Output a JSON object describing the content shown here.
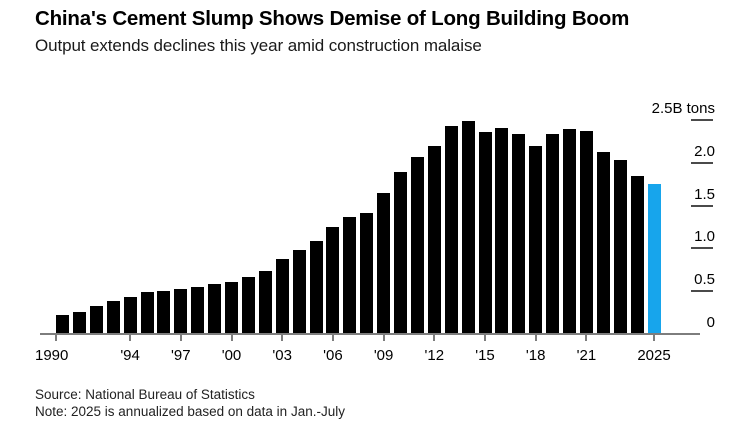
{
  "header": {
    "title": "China's Cement Slump Shows Demise of Long Building Boom",
    "subtitle": "Output extends declines this year amid construction malaise"
  },
  "chart_data": {
    "type": "bar",
    "title": "China's Cement Slump Shows Demise of Long Building Boom",
    "subtitle": "Output extends declines this year amid construction malaise",
    "unit": "B tons",
    "x": [
      1990,
      1991,
      1992,
      1993,
      1994,
      1995,
      1996,
      1997,
      1998,
      1999,
      2000,
      2001,
      2002,
      2003,
      2004,
      2005,
      2006,
      2007,
      2008,
      2009,
      2010,
      2011,
      2012,
      2013,
      2014,
      2015,
      2016,
      2017,
      2018,
      2019,
      2020,
      2021,
      2022,
      2023,
      2024,
      2025
    ],
    "values": [
      0.21,
      0.25,
      0.31,
      0.37,
      0.42,
      0.48,
      0.49,
      0.51,
      0.54,
      0.57,
      0.6,
      0.66,
      0.73,
      0.86,
      0.97,
      1.07,
      1.24,
      1.36,
      1.4,
      1.64,
      1.88,
      2.06,
      2.18,
      2.42,
      2.48,
      2.35,
      2.4,
      2.32,
      2.18,
      2.33,
      2.38,
      2.36,
      2.12,
      2.02,
      1.83,
      1.74
    ],
    "highlight_year": 2025,
    "colors": {
      "bar": "#000000",
      "highlight": "#17a5ec",
      "axis": "#7d7d7d"
    },
    "y_axis": {
      "side": "right",
      "ticks": [
        0,
        0.5,
        1.0,
        1.5,
        2.0,
        2.5
      ],
      "tick_labels": [
        "0",
        "0.5",
        "1.0",
        "1.5",
        "2.0",
        "2.5B tons"
      ],
      "ylim": [
        0,
        2.5
      ],
      "grid": false
    },
    "x_axis": {
      "tick_years": [
        1990,
        1994,
        1997,
        2000,
        2003,
        2006,
        2009,
        2012,
        2015,
        2018,
        2021,
        2025
      ],
      "tick_labels": [
        "1990",
        "'94",
        "'97",
        "'00",
        "'03",
        "'06",
        "'09",
        "'12",
        "'15",
        "'18",
        "'21",
        "2025"
      ]
    },
    "legend_position": "none"
  },
  "footer": {
    "source": "Source: National Bureau of Statistics",
    "note": "Note: 2025 is annualized based on data in Jan.-July"
  }
}
